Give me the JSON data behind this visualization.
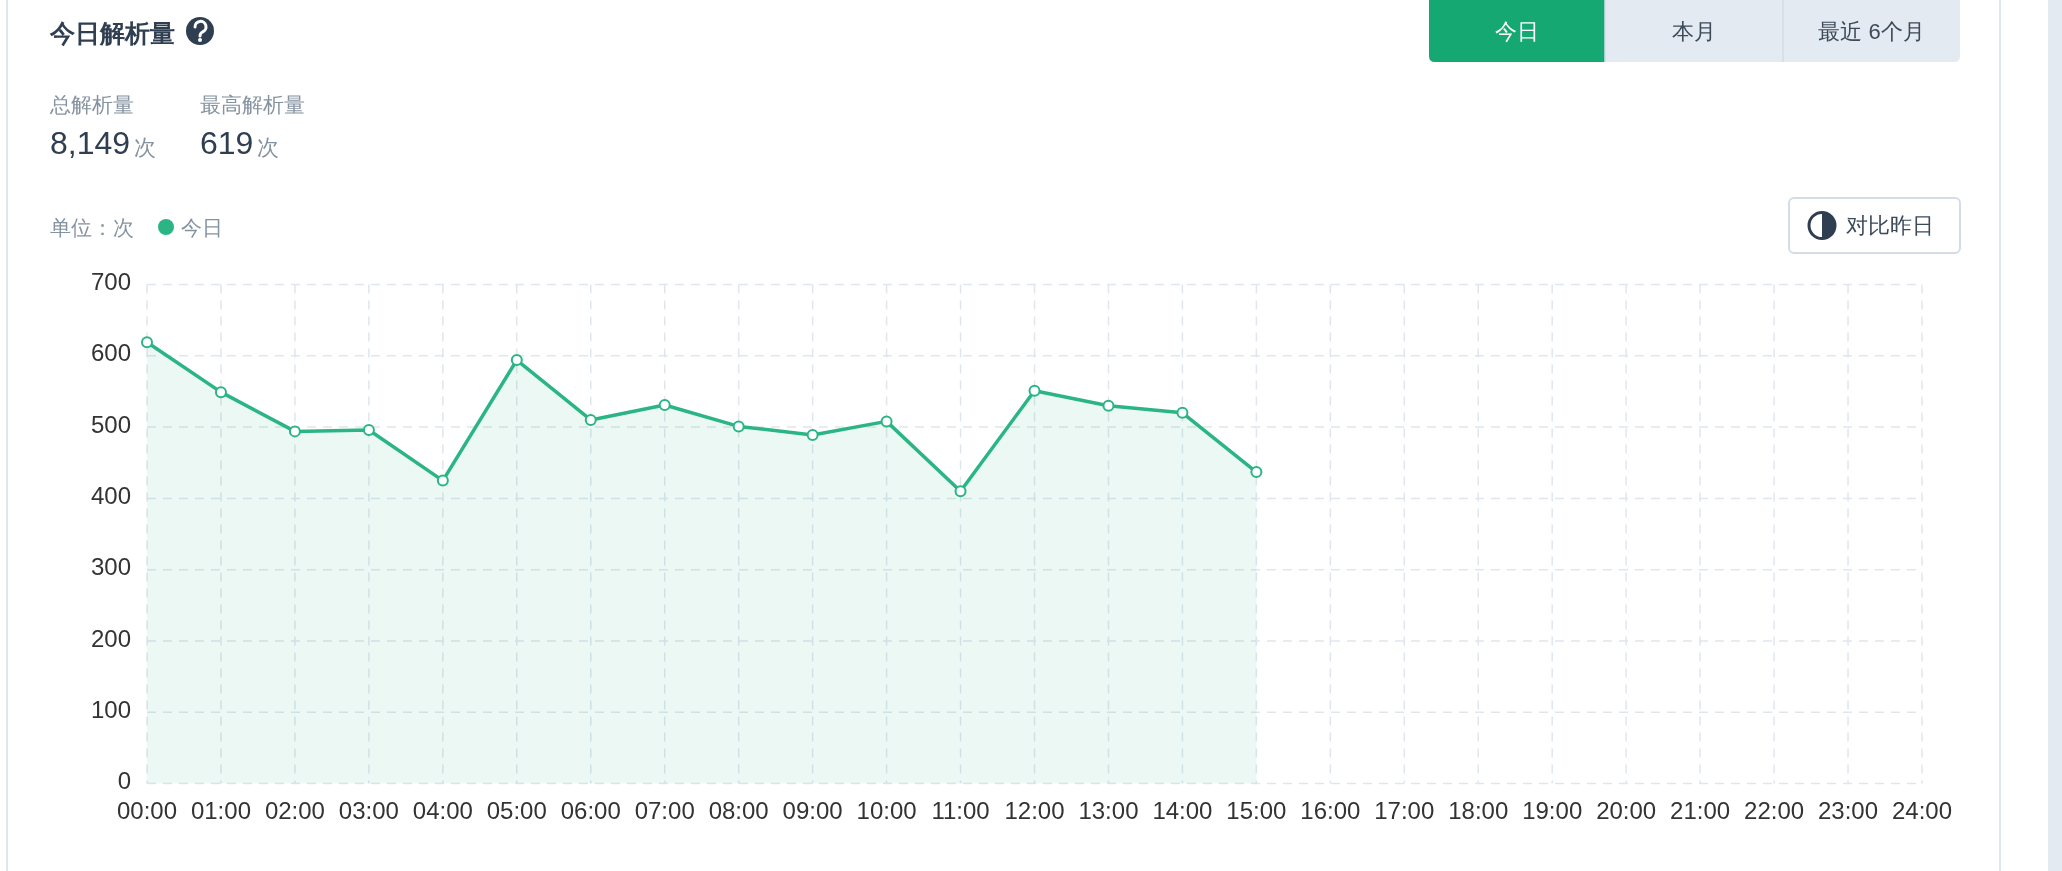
{
  "chart_data": {
    "type": "area",
    "title": "今日解析量",
    "ylabel": "单位：次",
    "annotations": [
      "总解析量",
      "8,149",
      "次",
      "最高解析量",
      "619",
      "次",
      "今日",
      "本月",
      "最近 6个月",
      "对比昨日"
    ],
    "x": [
      0,
      1,
      2,
      3,
      4,
      5,
      6,
      7,
      8,
      9,
      10,
      11,
      12,
      13,
      14,
      15
    ],
    "xlim": [
      0,
      24
    ],
    "xticks": [
      {
        "value": 0,
        "label": "00:00"
      },
      {
        "value": 1,
        "label": "01:00"
      },
      {
        "value": 2,
        "label": "02:00"
      },
      {
        "value": 3,
        "label": "03:00"
      },
      {
        "value": 4,
        "label": "04:00"
      },
      {
        "value": 5,
        "label": "05:00"
      },
      {
        "value": 6,
        "label": "06:00"
      },
      {
        "value": 7,
        "label": "07:00"
      },
      {
        "value": 8,
        "label": "08:00"
      },
      {
        "value": 9,
        "label": "09:00"
      },
      {
        "value": 10,
        "label": "10:00"
      },
      {
        "value": 11,
        "label": "11:00"
      },
      {
        "value": 12,
        "label": "12:00"
      },
      {
        "value": 13,
        "label": "13:00"
      },
      {
        "value": 14,
        "label": "14:00"
      },
      {
        "value": 15,
        "label": "15:00"
      },
      {
        "value": 16,
        "label": "16:00"
      },
      {
        "value": 17,
        "label": "17:00"
      },
      {
        "value": 18,
        "label": "18:00"
      },
      {
        "value": 19,
        "label": "19:00"
      },
      {
        "value": 20,
        "label": "20:00"
      },
      {
        "value": 21,
        "label": "21:00"
      },
      {
        "value": 22,
        "label": "22:00"
      },
      {
        "value": 23,
        "label": "23:00"
      },
      {
        "value": 24,
        "label": "24:00"
      }
    ],
    "ylim": [
      0,
      700
    ],
    "yticks": [
      0,
      100,
      200,
      300,
      400,
      500,
      600,
      700
    ],
    "series": [
      {
        "name": "今日",
        "color": "#2bb584",
        "values": [
          619,
          549,
          494,
          496,
          425,
          594,
          510,
          531,
          501,
          489,
          508,
          410,
          551,
          530,
          520,
          437
        ]
      }
    ],
    "grid": true,
    "legend": "top left",
    "marker": "circle",
    "line_style": "solid"
  }
}
